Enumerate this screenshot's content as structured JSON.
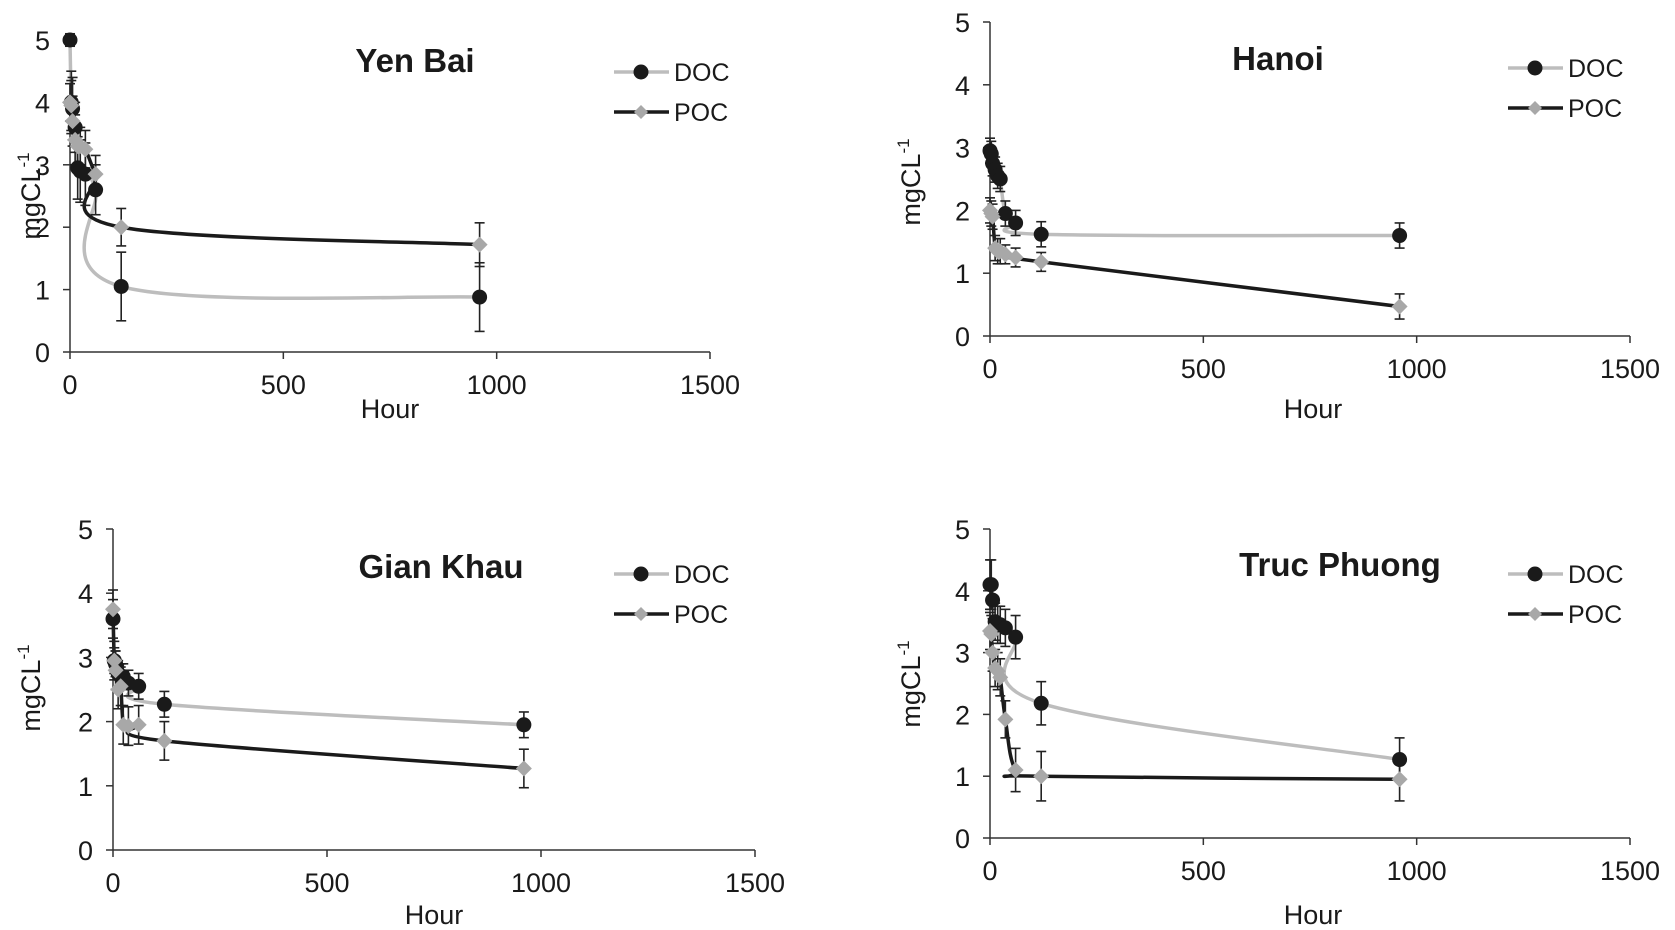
{
  "chart_data": [
    {
      "type": "scatter",
      "title": "Yen Bai",
      "xlabel": "Hour",
      "ylabel": "mgCL-1",
      "xlim": [
        0,
        1500
      ],
      "ylim": [
        0,
        5
      ],
      "xticks": [
        0,
        500,
        1000,
        1500
      ],
      "yticks": [
        0,
        1,
        2,
        3,
        4,
        5
      ],
      "legend_position": "top-right",
      "series": [
        {
          "name": "DOC",
          "marker": "circle",
          "marker_color": "#1a1a1a",
          "line_color": "#bdbdbd",
          "x": [
            0,
            3,
            6,
            12,
            18,
            24,
            36,
            60,
            120,
            960
          ],
          "y": [
            5.0,
            4.0,
            3.9,
            3.6,
            2.95,
            2.9,
            2.85,
            2.6,
            1.05,
            0.88
          ],
          "err": [
            0.1,
            0.5,
            0.5,
            0.4,
            0.5,
            0.5,
            0.5,
            0.4,
            0.55,
            0.55
          ]
        },
        {
          "name": "POC",
          "marker": "diamond",
          "marker_color": "#a8a8a8",
          "line_color": "#1a1a1a",
          "x": [
            0,
            3,
            6,
            12,
            18,
            24,
            36,
            60,
            120,
            960
          ],
          "y": [
            4.0,
            3.95,
            3.7,
            3.4,
            3.3,
            3.3,
            3.25,
            2.85,
            2.0,
            1.72
          ],
          "err": [
            0.3,
            0.4,
            0.4,
            0.4,
            0.3,
            0.3,
            0.3,
            0.3,
            0.3,
            0.35
          ]
        }
      ]
    },
    {
      "type": "scatter",
      "title": "Hanoi",
      "xlabel": "Hour",
      "ylabel": "mgCL-1",
      "xlim": [
        0,
        1500
      ],
      "ylim": [
        0,
        5
      ],
      "xticks": [
        0,
        500,
        1000,
        1500
      ],
      "yticks": [
        0,
        1,
        2,
        3,
        4,
        5
      ],
      "legend_position": "top-right",
      "series": [
        {
          "name": "DOC",
          "marker": "circle",
          "marker_color": "#1a1a1a",
          "line_color": "#bdbdbd",
          "x": [
            0,
            3,
            6,
            12,
            18,
            24,
            36,
            60,
            120,
            960
          ],
          "y": [
            2.95,
            2.9,
            2.75,
            2.65,
            2.55,
            2.5,
            1.95,
            1.8,
            1.62,
            1.6
          ],
          "err": [
            0.2,
            0.2,
            0.2,
            0.2,
            0.2,
            0.2,
            0.2,
            0.2,
            0.2,
            0.2
          ]
        },
        {
          "name": "POC",
          "marker": "diamond",
          "marker_color": "#a8a8a8",
          "line_color": "#1a1a1a",
          "x": [
            0,
            3,
            6,
            12,
            18,
            24,
            36,
            60,
            120,
            960
          ],
          "y": [
            2.0,
            1.95,
            1.9,
            1.4,
            1.35,
            1.35,
            1.3,
            1.25,
            1.18,
            0.47
          ],
          "err": [
            0.2,
            0.2,
            0.2,
            0.2,
            0.2,
            0.2,
            0.15,
            0.15,
            0.15,
            0.2
          ]
        }
      ]
    },
    {
      "type": "scatter",
      "title": "Gian Khau",
      "xlabel": "Hour",
      "ylabel": "mgCL-1",
      "xlim": [
        0,
        1500
      ],
      "ylim": [
        0,
        5
      ],
      "xticks": [
        0,
        500,
        1000,
        1500
      ],
      "yticks": [
        0,
        1,
        2,
        3,
        4,
        5
      ],
      "legend_position": "top-right",
      "series": [
        {
          "name": "DOC",
          "marker": "circle",
          "marker_color": "#1a1a1a",
          "line_color": "#bdbdbd",
          "x": [
            0,
            3,
            6,
            12,
            18,
            24,
            36,
            60,
            120,
            960
          ],
          "y": [
            3.6,
            2.95,
            2.9,
            2.75,
            2.7,
            2.7,
            2.6,
            2.55,
            2.27,
            1.95
          ],
          "err": [
            0.3,
            0.2,
            0.2,
            0.2,
            0.2,
            0.2,
            0.2,
            0.2,
            0.2,
            0.2
          ]
        },
        {
          "name": "POC",
          "marker": "diamond",
          "marker_color": "#a8a8a8",
          "line_color": "#1a1a1a",
          "x": [
            0,
            3,
            6,
            12,
            18,
            24,
            36,
            60,
            120,
            960
          ],
          "y": [
            3.75,
            2.95,
            2.8,
            2.5,
            2.55,
            1.95,
            1.93,
            1.95,
            1.7,
            1.27
          ],
          "err": [
            0.3,
            0.3,
            0.3,
            0.3,
            0.3,
            0.3,
            0.3,
            0.3,
            0.3,
            0.3
          ]
        }
      ]
    },
    {
      "type": "scatter",
      "title": "Truc Phuong",
      "xlabel": "Hour",
      "ylabel": "mgCL-1",
      "xlim": [
        0,
        1500
      ],
      "ylim": [
        0,
        5
      ],
      "xticks": [
        0,
        500,
        1000,
        1500
      ],
      "yticks": [
        0,
        1,
        2,
        3,
        4,
        5
      ],
      "legend_position": "top-right",
      "series": [
        {
          "name": "DOC",
          "marker": "circle",
          "marker_color": "#1a1a1a",
          "line_color": "#bdbdbd",
          "x": [
            0,
            3,
            6,
            12,
            18,
            24,
            36,
            60,
            120,
            960
          ],
          "y": [
            4.1,
            4.1,
            3.85,
            3.5,
            3.45,
            3.45,
            3.4,
            3.25,
            2.18,
            1.27
          ],
          "err": [
            0.4,
            0.4,
            0.3,
            0.3,
            0.3,
            0.3,
            0.3,
            0.35,
            0.35,
            0.35
          ]
        },
        {
          "name": "POC",
          "marker": "diamond",
          "marker_color": "#a8a8a8",
          "line_color": "#1a1a1a",
          "x": [
            0,
            3,
            6,
            12,
            18,
            24,
            36,
            60,
            120,
            960
          ],
          "y": [
            3.35,
            3.3,
            3.0,
            2.75,
            2.7,
            2.6,
            1.92,
            1.1,
            1.0,
            0.95
          ],
          "err": [
            0.3,
            0.3,
            0.3,
            0.3,
            0.3,
            0.3,
            0.3,
            0.35,
            0.4,
            0.35
          ]
        }
      ]
    }
  ]
}
